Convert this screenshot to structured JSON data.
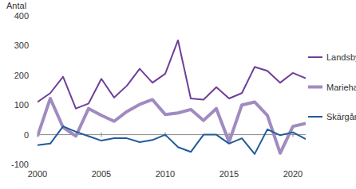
{
  "chart_data": {
    "type": "line",
    "y_label": "Antal",
    "x": [
      2000,
      2001,
      2002,
      2003,
      2004,
      2005,
      2006,
      2007,
      2008,
      2009,
      2010,
      2011,
      2012,
      2013,
      2014,
      2015,
      2016,
      2017,
      2018,
      2019,
      2020,
      2021
    ],
    "series": [
      {
        "name": "Landsbygden",
        "color": "#6f3f99",
        "values": [
          110,
          140,
          195,
          88,
          105,
          188,
          125,
          165,
          222,
          175,
          205,
          318,
          122,
          118,
          160,
          122,
          140,
          228,
          215,
          175,
          208,
          190
        ]
      },
      {
        "name": "Mariehamn",
        "color": "#a08bc0",
        "values": [
          -5,
          122,
          25,
          -5,
          88,
          65,
          45,
          78,
          102,
          118,
          68,
          73,
          85,
          48,
          88,
          -25,
          100,
          110,
          65,
          -62,
          28,
          38
        ]
      },
      {
        "name": "Skärgården",
        "color": "#1f5c99",
        "values": [
          -35,
          -30,
          28,
          10,
          -5,
          -20,
          -12,
          -12,
          -25,
          -18,
          0,
          -42,
          -58,
          0,
          0,
          -30,
          -12,
          -65,
          18,
          -2,
          8,
          -15
        ]
      }
    ],
    "xlim": [
      2000,
      2021
    ],
    "xticks": [
      2000,
      2005,
      2010,
      2015,
      2020
    ],
    "ylim": [
      -100,
      400
    ],
    "yticks": [
      -100,
      0,
      100,
      200,
      300,
      400
    ],
    "grid": false,
    "legend": "right"
  }
}
